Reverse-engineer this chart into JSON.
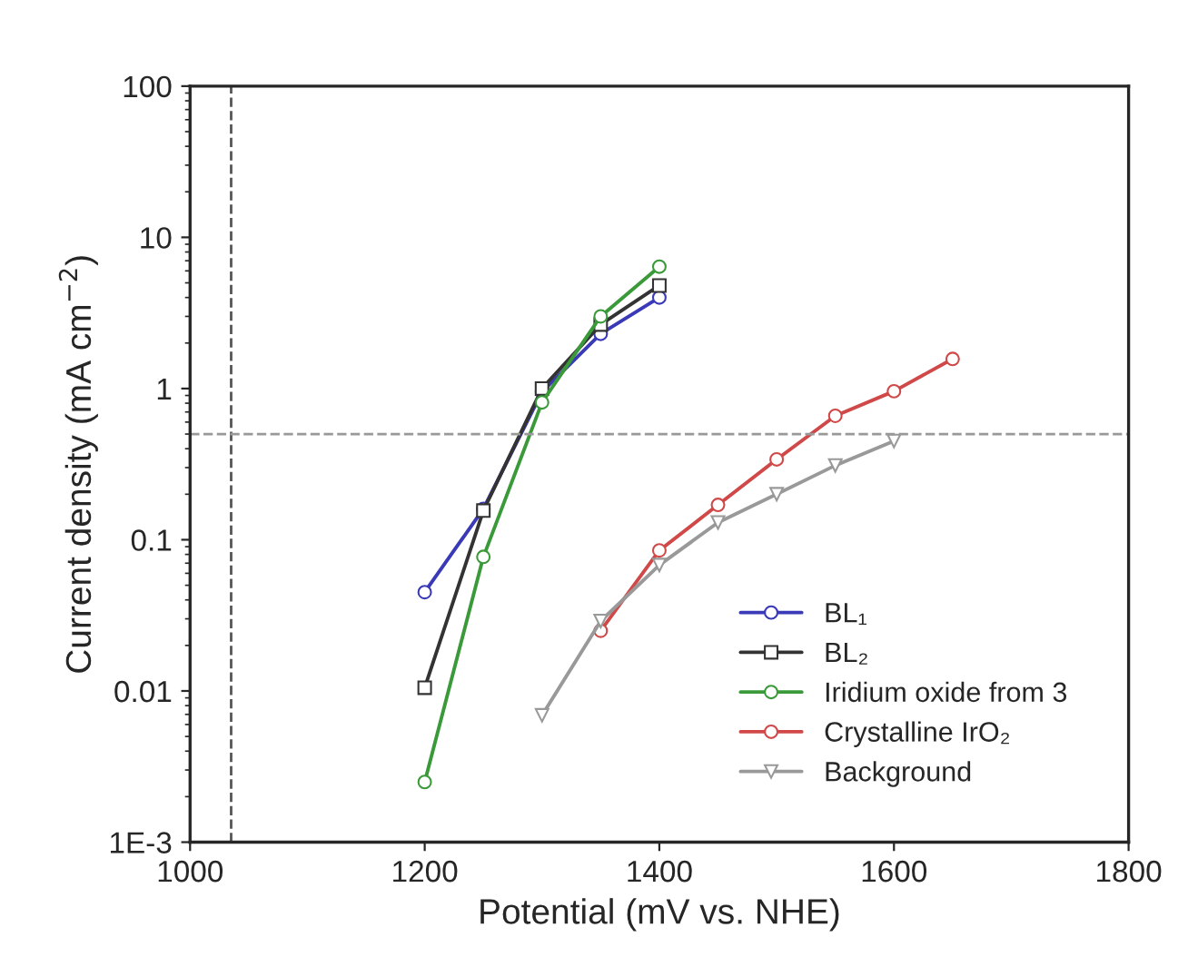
{
  "chart_data": {
    "type": "line",
    "xlabel": "Potential (mV vs. NHE)",
    "ylabel": "Current density (mA cm$^{−2}$)",
    "xlim": [
      1000,
      1800
    ],
    "xticks": [
      1000,
      1200,
      1400,
      1600,
      1800
    ],
    "ylim": [
      0.001,
      100
    ],
    "yticks": [
      {
        "value": 0.001,
        "label": "1E-3"
      },
      0.01,
      0.1,
      1,
      10,
      100
    ],
    "log": "y",
    "grid": false,
    "legend": "bottom right",
    "line_style": "solid",
    "series": [
      {
        "name": "BL₁",
        "color": "#3a3ab8",
        "marker": "circle",
        "x": [
          1200,
          1250,
          1300,
          1350,
          1400
        ],
        "values": [
          0.045,
          0.16,
          0.95,
          2.3,
          4.0
        ]
      },
      {
        "name": "BL₂",
        "color": "#333333",
        "marker": "square",
        "x": [
          1200,
          1250,
          1300,
          1350,
          1400
        ],
        "values": [
          0.0105,
          0.156,
          1.0,
          2.65,
          4.8
        ]
      },
      {
        "name": "Iridium oxide from 3",
        "color": "#3a9a3a",
        "marker": "circle",
        "x": [
          1200,
          1250,
          1300,
          1350,
          1400
        ],
        "values": [
          0.0025,
          0.077,
          0.81,
          3.0,
          6.4
        ]
      },
      {
        "name": "Crystalline IrO₂",
        "color": "#d04848",
        "marker": "circle",
        "x": [
          1350,
          1400,
          1450,
          1500,
          1550,
          1600,
          1650
        ],
        "values": [
          0.025,
          0.085,
          0.17,
          0.34,
          0.66,
          0.96,
          1.57
        ]
      },
      {
        "name": "Background",
        "color": "#999999",
        "marker": "triangle",
        "x": [
          1300,
          1350,
          1400,
          1450,
          1500,
          1550,
          1600
        ],
        "values": [
          0.0069,
          0.029,
          0.068,
          0.13,
          0.2,
          0.31,
          0.45
        ]
      }
    ],
    "ref_lines": [
      {
        "axis": "x",
        "value": 1035,
        "color": "#555555",
        "line_style": "dashed"
      },
      {
        "axis": "y",
        "value": 0.5,
        "color": "#999999",
        "line_style": "dashed"
      }
    ]
  }
}
